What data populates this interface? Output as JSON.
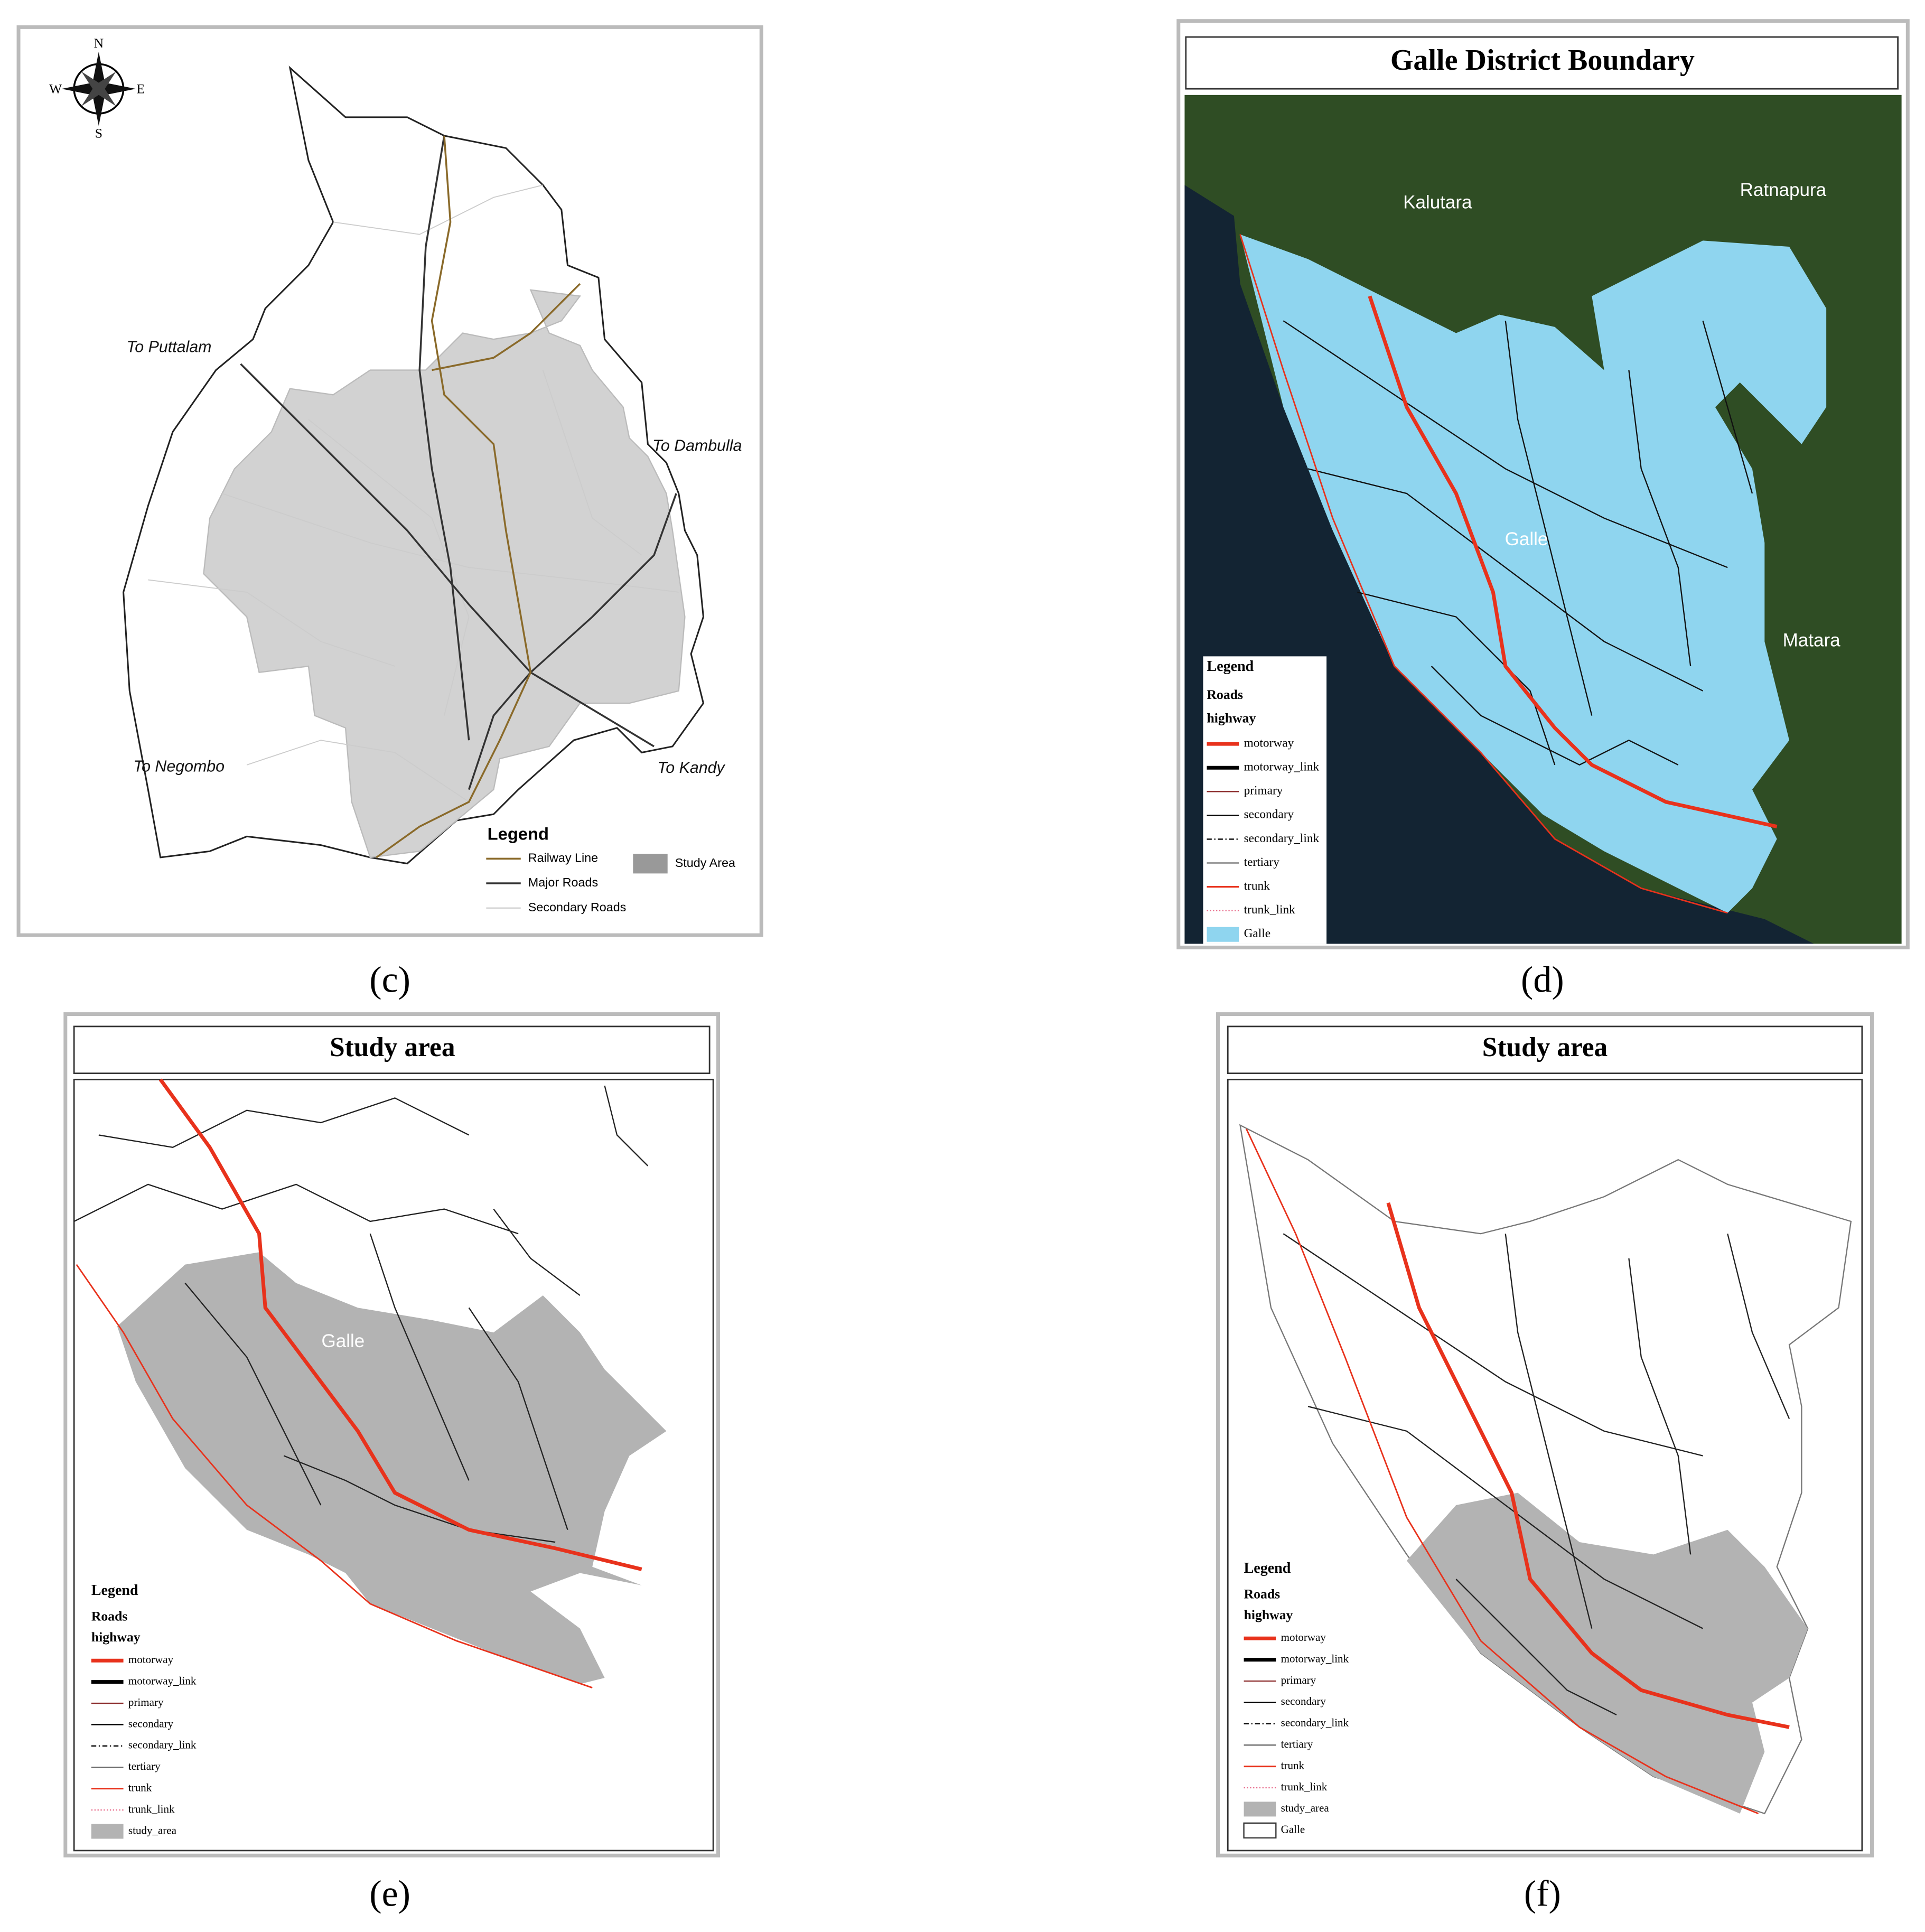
{
  "panels": [
    {
      "caption": "(c)",
      "compass": [
        "N",
        "E",
        "S",
        "W"
      ],
      "places": [
        "To Puttalam",
        "To Dambulla",
        "To Negombo",
        "To Kandy"
      ],
      "legend": {
        "title": "Legend",
        "items": [
          "Railway Line",
          "Major Roads",
          "Secondary Roads",
          "Study Area"
        ]
      }
    },
    {
      "caption": "(d)",
      "title": "Galle District Boundary",
      "places": [
        "Kalutara",
        "Ratnapura",
        "Galle",
        "Matara"
      ],
      "legend": {
        "title": "Legend",
        "group": "Roads",
        "subgroup": "highway",
        "items": [
          "motorway",
          "motorway_link",
          "primary",
          "secondary",
          "secondary_link",
          "tertiary",
          "trunk",
          "trunk_link",
          "Galle"
        ]
      }
    },
    {
      "caption": "(e)",
      "title": "Study area",
      "places": [
        "Galle"
      ],
      "legend": {
        "title": "Legend",
        "group": "Roads",
        "subgroup": "highway",
        "items": [
          "motorway",
          "motorway_link",
          "primary",
          "secondary",
          "secondary_link",
          "tertiary",
          "trunk",
          "trunk_link",
          "study_area"
        ]
      }
    },
    {
      "caption": "(f)",
      "title": "Study area",
      "legend": {
        "title": "Legend",
        "group": "Roads",
        "subgroup": "highway",
        "items": [
          "motorway",
          "motorway_link",
          "primary",
          "secondary",
          "secondary_link",
          "tertiary",
          "trunk",
          "trunk_link",
          "study_area",
          "Galle"
        ]
      }
    }
  ]
}
